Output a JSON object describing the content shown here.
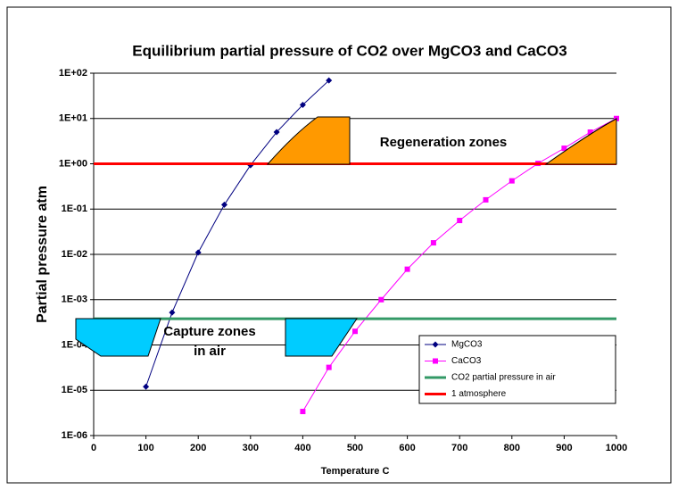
{
  "chart_data": {
    "type": "line",
    "title": "Equilibrium partial pressure of CO2 over MgCO3 and CaCO3",
    "x_label": "Temperature C",
    "y_label": "Partial pressure atm",
    "yscale": "log",
    "xlim": [
      0,
      1000
    ],
    "xticks": [
      0,
      100,
      200,
      300,
      400,
      500,
      600,
      700,
      800,
      900,
      1000
    ],
    "ylim": [
      1e-06,
      100
    ],
    "yticks": [
      {
        "value": 1e-06,
        "label": "1E-06"
      },
      {
        "value": 1e-05,
        "label": "1E-05"
      },
      {
        "value": 0.0001,
        "label": "1E-04"
      },
      {
        "value": 0.001,
        "label": "1E-03"
      },
      {
        "value": 0.01,
        "label": "1E-02"
      },
      {
        "value": 0.1,
        "label": "1E-01"
      },
      {
        "value": 1,
        "label": "1E+00"
      },
      {
        "value": 10,
        "label": "1E+01"
      },
      {
        "value": 100,
        "label": "1E+02"
      }
    ],
    "grid": true,
    "legend": "lower right",
    "annotations": [
      "Regeneration  zones",
      "Capture zones",
      "in air"
    ],
    "series": [
      {
        "name": "MgCO3",
        "color": "#000080",
        "marker": "diamond",
        "x": [
          100,
          150,
          200,
          250,
          300,
          350,
          400,
          450
        ],
        "values": [
          1.2e-05,
          0.00052,
          0.011,
          0.125,
          0.93,
          5,
          20,
          69
        ]
      },
      {
        "name": "CaCO3",
        "color": "#ff00ff",
        "marker": "square",
        "x": [
          400,
          450,
          500,
          550,
          600,
          650,
          700,
          750,
          800,
          850,
          900,
          950,
          1000
        ],
        "values": [
          3.4e-06,
          3.2e-05,
          0.0002,
          0.001,
          0.0047,
          0.018,
          0.056,
          0.16,
          0.42,
          1.02,
          2.2,
          5,
          10
        ]
      },
      {
        "name": "CO2 partial pressure in air",
        "color": "#339966",
        "marker": "none",
        "x": [
          0,
          1000
        ],
        "values": [
          0.00038,
          0.00038
        ]
      },
      {
        "name": "1 atmosphere",
        "color": "#ff0000",
        "marker": "none",
        "x": [
          0,
          1000
        ],
        "values": [
          1,
          1
        ]
      }
    ]
  }
}
